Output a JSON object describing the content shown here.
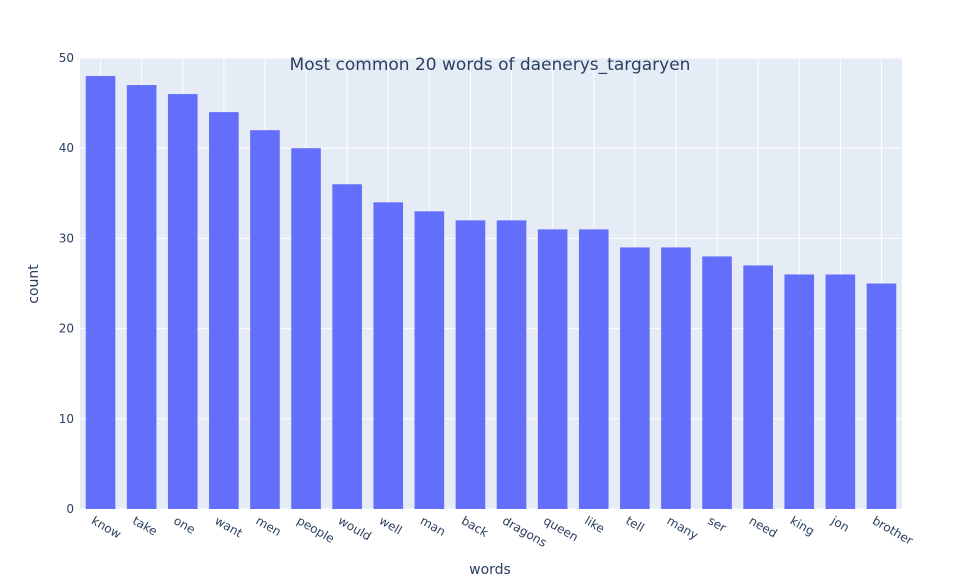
{
  "chart_data": {
    "type": "bar",
    "title": "Most common 20 words of daenerys_targaryen",
    "xlabel": "words",
    "ylabel": "count",
    "categories": [
      "know",
      "take",
      "one",
      "want",
      "men",
      "people",
      "would",
      "well",
      "man",
      "back",
      "dragons",
      "queen",
      "like",
      "tell",
      "many",
      "ser",
      "need",
      "king",
      "jon",
      "brother"
    ],
    "values": [
      48,
      47,
      46,
      44,
      42,
      40,
      36,
      34,
      33,
      32,
      32,
      31,
      31,
      29,
      29,
      28,
      27,
      26,
      26,
      25
    ],
    "ylim": [
      0,
      50
    ],
    "yticks": [
      "0",
      "10",
      "20",
      "30",
      "40",
      "50"
    ],
    "grid": true,
    "colors": {
      "bar": "#636efa",
      "plot_bg": "#e5ecf6",
      "grid": "#ffffff",
      "text": "#2a3f5f"
    }
  }
}
